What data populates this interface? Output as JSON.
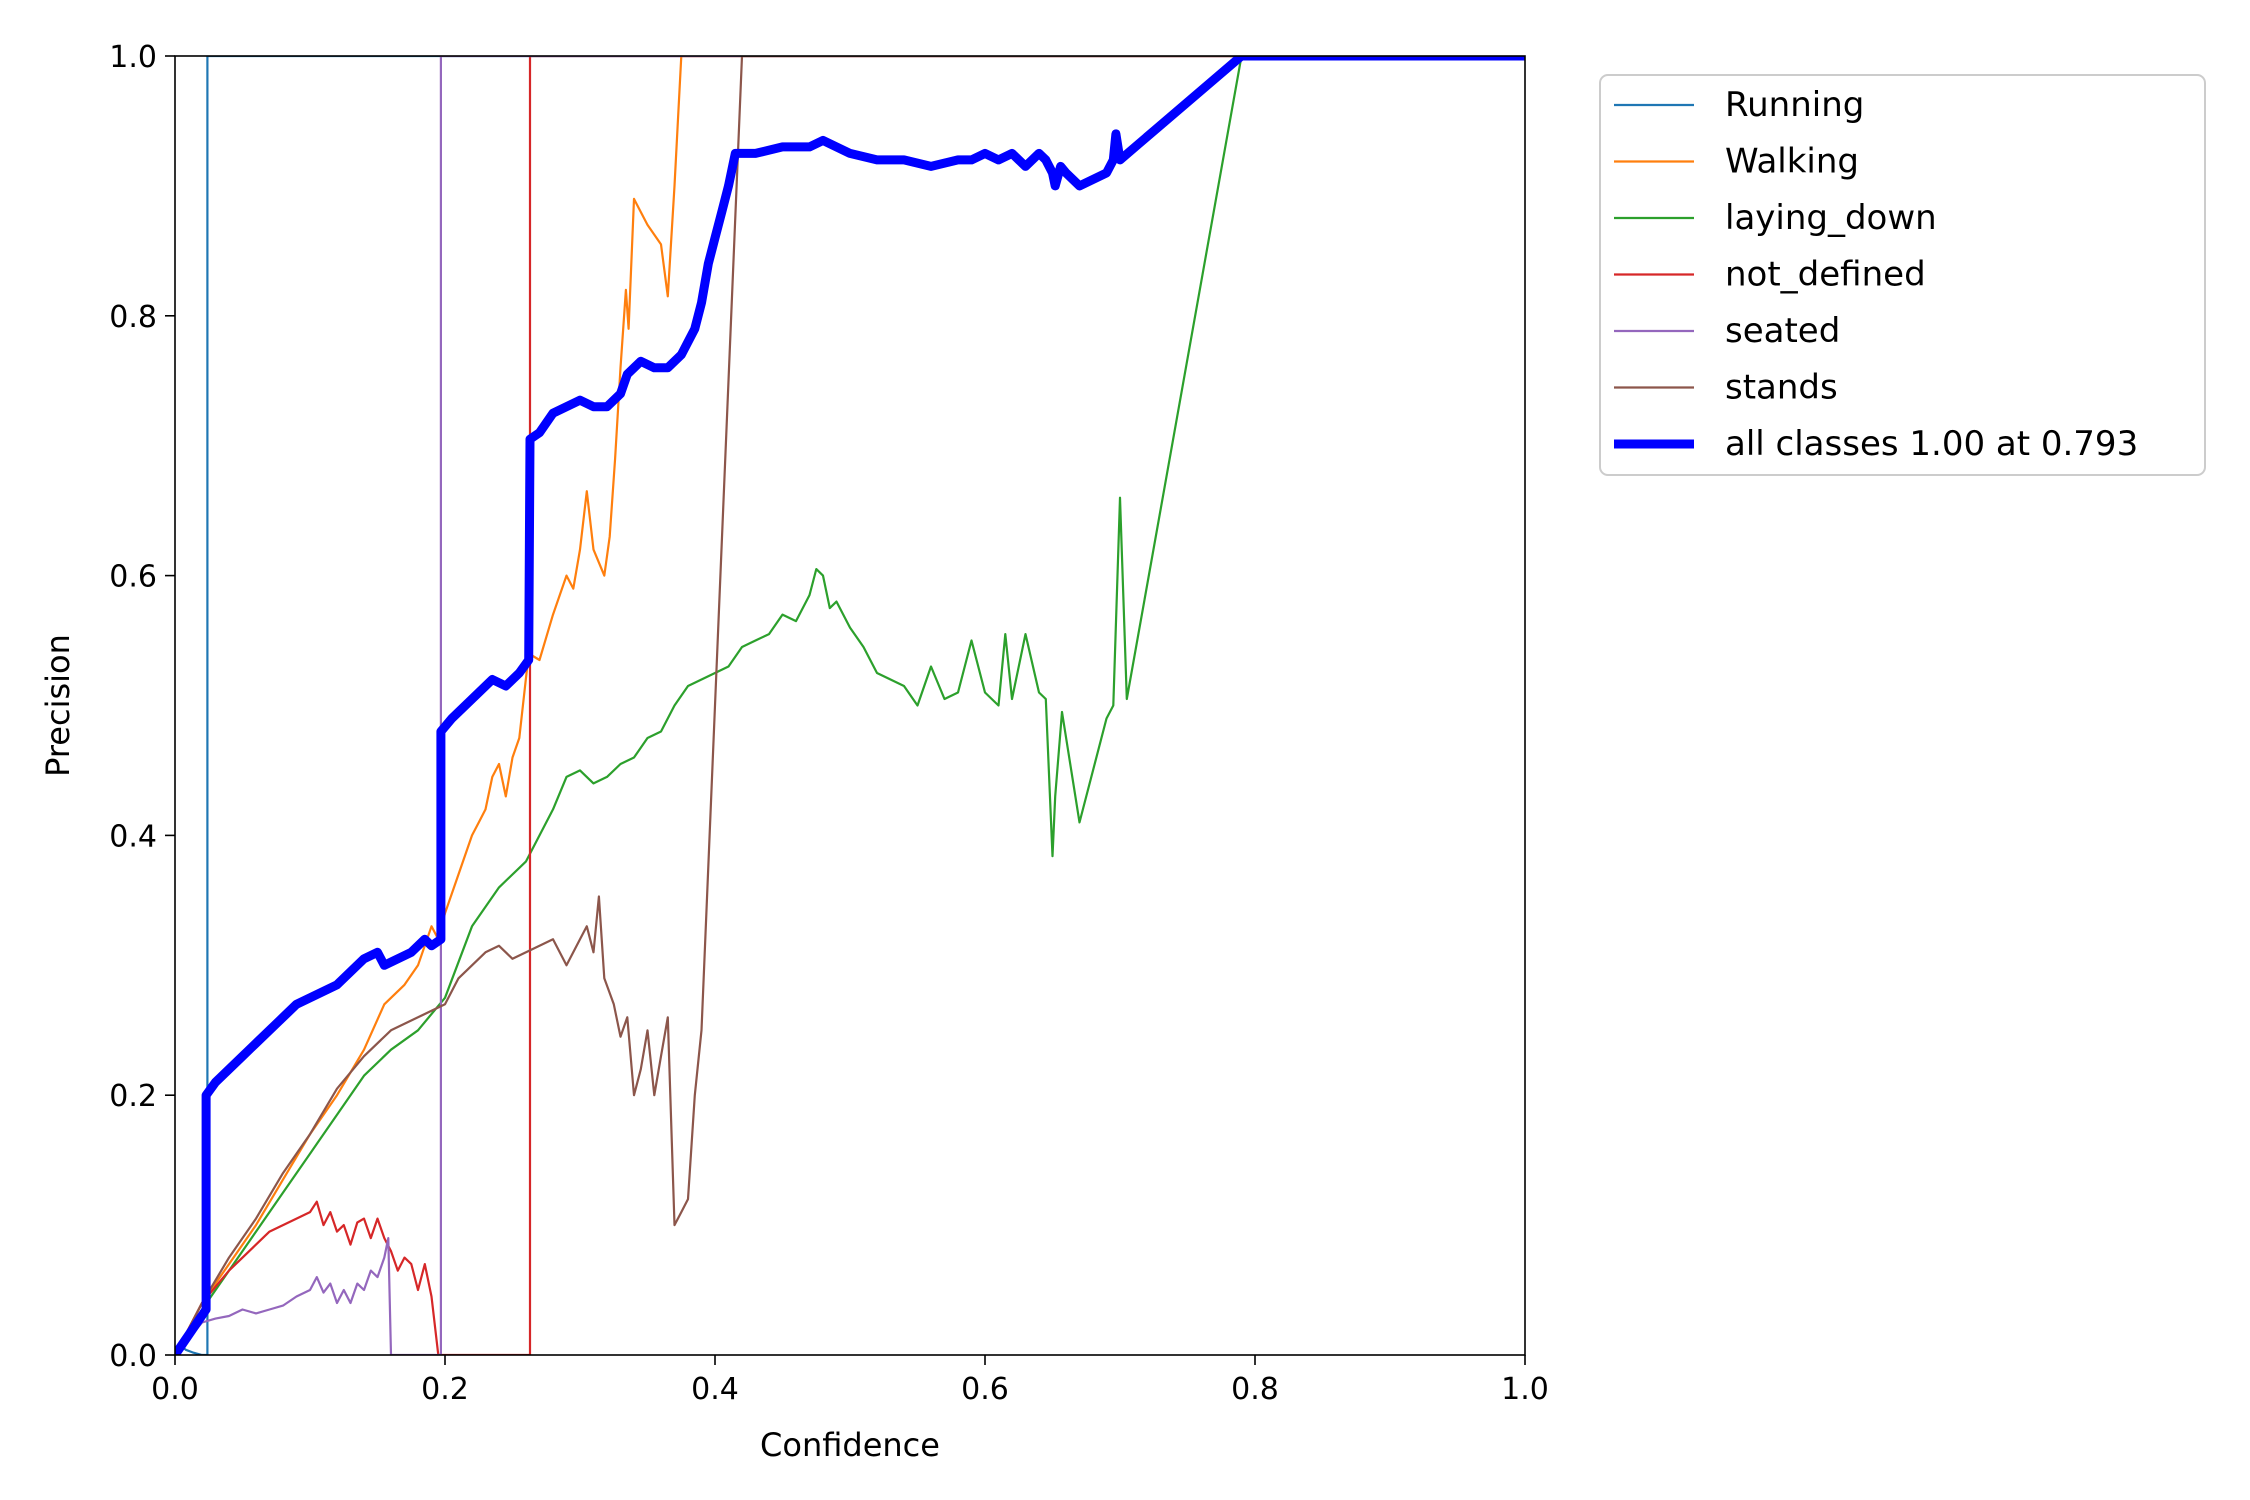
{
  "chart_data": {
    "type": "line",
    "title": "",
    "xlabel": "Confidence",
    "ylabel": "Precision",
    "xlim": [
      0,
      1
    ],
    "ylim": [
      0,
      1
    ],
    "xticks": [
      0.0,
      0.2,
      0.4,
      0.6,
      0.8,
      1.0
    ],
    "yticks": [
      0.0,
      0.2,
      0.4,
      0.6,
      0.8,
      1.0
    ],
    "xtick_labels": [
      "0.0",
      "0.2",
      "0.4",
      "0.6",
      "0.8",
      "1.0"
    ],
    "ytick_labels": [
      "0.0",
      "0.2",
      "0.4",
      "0.6",
      "0.8",
      "1.0"
    ],
    "grid": false,
    "legend_position": "outside-top-right",
    "series": [
      {
        "name": "Running",
        "color": "#1f77b4",
        "width": "thin",
        "points": [
          [
            0.0,
            0.0
          ],
          [
            0.003,
            0.008
          ],
          [
            0.008,
            0.004
          ],
          [
            0.013,
            0.002
          ],
          [
            0.02,
            0.0
          ],
          [
            0.024,
            0.0
          ],
          [
            0.024,
            1.0
          ],
          [
            1.0,
            1.0
          ]
        ]
      },
      {
        "name": "Walking",
        "color": "#ff7f0e",
        "width": "thin",
        "points": [
          [
            0.0,
            0.0
          ],
          [
            0.02,
            0.04
          ],
          [
            0.04,
            0.07
          ],
          [
            0.06,
            0.1
          ],
          [
            0.08,
            0.135
          ],
          [
            0.1,
            0.17
          ],
          [
            0.12,
            0.2
          ],
          [
            0.14,
            0.235
          ],
          [
            0.155,
            0.27
          ],
          [
            0.17,
            0.285
          ],
          [
            0.18,
            0.3
          ],
          [
            0.19,
            0.33
          ],
          [
            0.195,
            0.32
          ],
          [
            0.2,
            0.34
          ],
          [
            0.21,
            0.37
          ],
          [
            0.22,
            0.4
          ],
          [
            0.225,
            0.41
          ],
          [
            0.23,
            0.42
          ],
          [
            0.235,
            0.445
          ],
          [
            0.24,
            0.455
          ],
          [
            0.245,
            0.43
          ],
          [
            0.25,
            0.46
          ],
          [
            0.255,
            0.475
          ],
          [
            0.262,
            0.54
          ],
          [
            0.27,
            0.535
          ],
          [
            0.28,
            0.57
          ],
          [
            0.29,
            0.6
          ],
          [
            0.295,
            0.59
          ],
          [
            0.3,
            0.62
          ],
          [
            0.305,
            0.665
          ],
          [
            0.31,
            0.62
          ],
          [
            0.318,
            0.6
          ],
          [
            0.322,
            0.63
          ],
          [
            0.326,
            0.69
          ],
          [
            0.33,
            0.76
          ],
          [
            0.334,
            0.82
          ],
          [
            0.336,
            0.79
          ],
          [
            0.34,
            0.89
          ],
          [
            0.35,
            0.87
          ],
          [
            0.36,
            0.855
          ],
          [
            0.365,
            0.815
          ],
          [
            0.37,
            0.9
          ],
          [
            0.375,
            1.0
          ],
          [
            1.0,
            1.0
          ]
        ]
      },
      {
        "name": "laying_down",
        "color": "#2ca02c",
        "width": "thin",
        "points": [
          [
            0.0,
            0.0
          ],
          [
            0.02,
            0.035
          ],
          [
            0.04,
            0.065
          ],
          [
            0.06,
            0.095
          ],
          [
            0.08,
            0.125
          ],
          [
            0.1,
            0.155
          ],
          [
            0.12,
            0.185
          ],
          [
            0.14,
            0.215
          ],
          [
            0.16,
            0.235
          ],
          [
            0.18,
            0.25
          ],
          [
            0.2,
            0.275
          ],
          [
            0.22,
            0.33
          ],
          [
            0.24,
            0.36
          ],
          [
            0.26,
            0.38
          ],
          [
            0.27,
            0.4
          ],
          [
            0.28,
            0.42
          ],
          [
            0.29,
            0.445
          ],
          [
            0.3,
            0.45
          ],
          [
            0.31,
            0.44
          ],
          [
            0.32,
            0.445
          ],
          [
            0.33,
            0.455
          ],
          [
            0.34,
            0.46
          ],
          [
            0.35,
            0.475
          ],
          [
            0.36,
            0.48
          ],
          [
            0.37,
            0.5
          ],
          [
            0.38,
            0.515
          ],
          [
            0.39,
            0.52
          ],
          [
            0.4,
            0.525
          ],
          [
            0.41,
            0.53
          ],
          [
            0.42,
            0.545
          ],
          [
            0.43,
            0.55
          ],
          [
            0.44,
            0.555
          ],
          [
            0.45,
            0.57
          ],
          [
            0.46,
            0.565
          ],
          [
            0.47,
            0.585
          ],
          [
            0.475,
            0.605
          ],
          [
            0.48,
            0.6
          ],
          [
            0.485,
            0.575
          ],
          [
            0.49,
            0.58
          ],
          [
            0.5,
            0.56
          ],
          [
            0.51,
            0.545
          ],
          [
            0.52,
            0.525
          ],
          [
            0.53,
            0.52
          ],
          [
            0.54,
            0.515
          ],
          [
            0.55,
            0.5
          ],
          [
            0.56,
            0.53
          ],
          [
            0.57,
            0.505
          ],
          [
            0.58,
            0.51
          ],
          [
            0.59,
            0.55
          ],
          [
            0.6,
            0.51
          ],
          [
            0.61,
            0.5
          ],
          [
            0.615,
            0.555
          ],
          [
            0.62,
            0.505
          ],
          [
            0.63,
            0.555
          ],
          [
            0.64,
            0.51
          ],
          [
            0.645,
            0.505
          ],
          [
            0.65,
            0.384
          ],
          [
            0.652,
            0.43
          ],
          [
            0.657,
            0.495
          ],
          [
            0.67,
            0.41
          ],
          [
            0.69,
            0.49
          ],
          [
            0.695,
            0.5
          ],
          [
            0.7,
            0.66
          ],
          [
            0.705,
            0.505
          ],
          [
            0.79,
            1.0
          ],
          [
            1.0,
            1.0
          ]
        ]
      },
      {
        "name": "not_defined",
        "color": "#d62728",
        "width": "thin",
        "points": [
          [
            0.0,
            0.0
          ],
          [
            0.02,
            0.04
          ],
          [
            0.04,
            0.065
          ],
          [
            0.06,
            0.085
          ],
          [
            0.07,
            0.095
          ],
          [
            0.08,
            0.1
          ],
          [
            0.09,
            0.105
          ],
          [
            0.1,
            0.11
          ],
          [
            0.105,
            0.118
          ],
          [
            0.11,
            0.1
          ],
          [
            0.115,
            0.11
          ],
          [
            0.12,
            0.095
          ],
          [
            0.125,
            0.1
          ],
          [
            0.13,
            0.085
          ],
          [
            0.135,
            0.102
          ],
          [
            0.14,
            0.105
          ],
          [
            0.145,
            0.09
          ],
          [
            0.15,
            0.105
          ],
          [
            0.155,
            0.09
          ],
          [
            0.16,
            0.08
          ],
          [
            0.165,
            0.065
          ],
          [
            0.17,
            0.075
          ],
          [
            0.175,
            0.07
          ],
          [
            0.18,
            0.05
          ],
          [
            0.185,
            0.07
          ],
          [
            0.19,
            0.045
          ],
          [
            0.195,
            0.0
          ],
          [
            0.263,
            0.0
          ],
          [
            0.263,
            1.0
          ],
          [
            1.0,
            1.0
          ]
        ]
      },
      {
        "name": "seated",
        "color": "#9467bd",
        "width": "thin",
        "points": [
          [
            0.0,
            0.0
          ],
          [
            0.02,
            0.025
          ],
          [
            0.03,
            0.028
          ],
          [
            0.04,
            0.03
          ],
          [
            0.05,
            0.035
          ],
          [
            0.06,
            0.032
          ],
          [
            0.07,
            0.035
          ],
          [
            0.08,
            0.038
          ],
          [
            0.09,
            0.045
          ],
          [
            0.1,
            0.05
          ],
          [
            0.105,
            0.06
          ],
          [
            0.11,
            0.048
          ],
          [
            0.115,
            0.055
          ],
          [
            0.12,
            0.04
          ],
          [
            0.125,
            0.05
          ],
          [
            0.13,
            0.04
          ],
          [
            0.135,
            0.055
          ],
          [
            0.14,
            0.05
          ],
          [
            0.145,
            0.065
          ],
          [
            0.15,
            0.06
          ],
          [
            0.155,
            0.075
          ],
          [
            0.158,
            0.09
          ],
          [
            0.16,
            0.0
          ],
          [
            0.197,
            0.0
          ],
          [
            0.197,
            1.0
          ],
          [
            1.0,
            1.0
          ]
        ]
      },
      {
        "name": "stands",
        "color": "#8c564b",
        "width": "thin",
        "points": [
          [
            0.0,
            0.0
          ],
          [
            0.02,
            0.04
          ],
          [
            0.04,
            0.075
          ],
          [
            0.06,
            0.105
          ],
          [
            0.08,
            0.14
          ],
          [
            0.1,
            0.17
          ],
          [
            0.12,
            0.205
          ],
          [
            0.14,
            0.23
          ],
          [
            0.16,
            0.25
          ],
          [
            0.18,
            0.26
          ],
          [
            0.2,
            0.27
          ],
          [
            0.21,
            0.29
          ],
          [
            0.22,
            0.3
          ],
          [
            0.23,
            0.31
          ],
          [
            0.24,
            0.315
          ],
          [
            0.25,
            0.305
          ],
          [
            0.26,
            0.31
          ],
          [
            0.27,
            0.315
          ],
          [
            0.28,
            0.32
          ],
          [
            0.29,
            0.3
          ],
          [
            0.3,
            0.32
          ],
          [
            0.305,
            0.33
          ],
          [
            0.31,
            0.31
          ],
          [
            0.314,
            0.353
          ],
          [
            0.318,
            0.29
          ],
          [
            0.325,
            0.27
          ],
          [
            0.33,
            0.245
          ],
          [
            0.335,
            0.26
          ],
          [
            0.34,
            0.2
          ],
          [
            0.345,
            0.22
          ],
          [
            0.35,
            0.25
          ],
          [
            0.355,
            0.2
          ],
          [
            0.36,
            0.23
          ],
          [
            0.365,
            0.26
          ],
          [
            0.37,
            0.1
          ],
          [
            0.375,
            0.11
          ],
          [
            0.38,
            0.12
          ],
          [
            0.385,
            0.2
          ],
          [
            0.39,
            0.25
          ],
          [
            0.4,
            0.5
          ],
          [
            0.41,
            0.75
          ],
          [
            0.42,
            1.0
          ],
          [
            1.0,
            1.0
          ]
        ]
      },
      {
        "name": "all classes 1.00 at 0.793",
        "color": "#0000ff",
        "width": "thick",
        "points": [
          [
            0.0,
            0.0
          ],
          [
            0.023,
            0.035
          ],
          [
            0.023,
            0.2
          ],
          [
            0.03,
            0.21
          ],
          [
            0.04,
            0.22
          ],
          [
            0.05,
            0.23
          ],
          [
            0.06,
            0.24
          ],
          [
            0.07,
            0.25
          ],
          [
            0.08,
            0.26
          ],
          [
            0.09,
            0.27
          ],
          [
            0.1,
            0.275
          ],
          [
            0.11,
            0.28
          ],
          [
            0.12,
            0.285
          ],
          [
            0.13,
            0.295
          ],
          [
            0.14,
            0.305
          ],
          [
            0.15,
            0.31
          ],
          [
            0.155,
            0.3
          ],
          [
            0.165,
            0.305
          ],
          [
            0.175,
            0.31
          ],
          [
            0.185,
            0.32
          ],
          [
            0.19,
            0.315
          ],
          [
            0.197,
            0.32
          ],
          [
            0.197,
            0.48
          ],
          [
            0.205,
            0.49
          ],
          [
            0.215,
            0.5
          ],
          [
            0.225,
            0.51
          ],
          [
            0.235,
            0.52
          ],
          [
            0.245,
            0.515
          ],
          [
            0.255,
            0.525
          ],
          [
            0.262,
            0.535
          ],
          [
            0.263,
            0.705
          ],
          [
            0.27,
            0.71
          ],
          [
            0.28,
            0.725
          ],
          [
            0.29,
            0.73
          ],
          [
            0.3,
            0.735
          ],
          [
            0.31,
            0.73
          ],
          [
            0.32,
            0.73
          ],
          [
            0.33,
            0.74
          ],
          [
            0.335,
            0.755
          ],
          [
            0.345,
            0.765
          ],
          [
            0.355,
            0.76
          ],
          [
            0.365,
            0.76
          ],
          [
            0.375,
            0.77
          ],
          [
            0.385,
            0.79
          ],
          [
            0.39,
            0.81
          ],
          [
            0.395,
            0.84
          ],
          [
            0.4,
            0.86
          ],
          [
            0.405,
            0.88
          ],
          [
            0.41,
            0.9
          ],
          [
            0.415,
            0.925
          ],
          [
            0.43,
            0.925
          ],
          [
            0.45,
            0.93
          ],
          [
            0.47,
            0.93
          ],
          [
            0.48,
            0.935
          ],
          [
            0.49,
            0.93
          ],
          [
            0.5,
            0.925
          ],
          [
            0.52,
            0.92
          ],
          [
            0.54,
            0.92
          ],
          [
            0.56,
            0.915
          ],
          [
            0.58,
            0.92
          ],
          [
            0.59,
            0.92
          ],
          [
            0.6,
            0.925
          ],
          [
            0.61,
            0.92
          ],
          [
            0.62,
            0.925
          ],
          [
            0.63,
            0.915
          ],
          [
            0.64,
            0.925
          ],
          [
            0.645,
            0.92
          ],
          [
            0.65,
            0.91
          ],
          [
            0.652,
            0.9
          ],
          [
            0.656,
            0.915
          ],
          [
            0.66,
            0.91
          ],
          [
            0.67,
            0.9
          ],
          [
            0.68,
            0.905
          ],
          [
            0.69,
            0.91
          ],
          [
            0.695,
            0.92
          ],
          [
            0.697,
            0.94
          ],
          [
            0.7,
            0.92
          ],
          [
            0.79,
            1.0
          ],
          [
            1.0,
            1.0
          ]
        ]
      }
    ]
  }
}
